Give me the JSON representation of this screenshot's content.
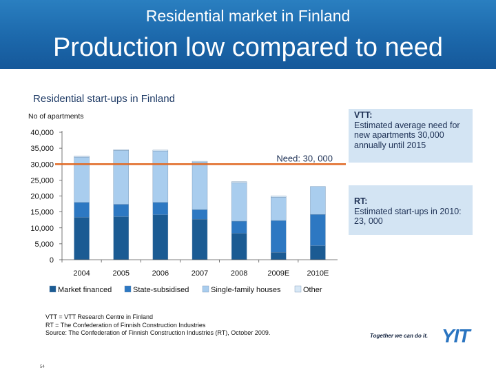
{
  "header": {
    "supertitle": "Residential market in Finland",
    "title": "Production low compared to need"
  },
  "subtitle": "Residential start-ups in Finland",
  "colors": {
    "header_bg": "#1c68ab",
    "market_financed": "#1b5b93",
    "state_subsidised": "#2d78c2",
    "single_family": "#a9cdee",
    "other": "#d8e8f6",
    "need_line": "#e06a25",
    "box_bg": "#d3e4f3"
  },
  "chart_data": {
    "type": "bar",
    "stacked": true,
    "ylabel": "No of apartments",
    "ylim": [
      0,
      40000
    ],
    "y_ticks": [
      "0",
      "5,000",
      "10,000",
      "15,000",
      "20,000",
      "25,000",
      "30,000",
      "35,000",
      "40,000"
    ],
    "categories": [
      "2004",
      "2005",
      "2006",
      "2007",
      "2008",
      "2009E",
      "2010E"
    ],
    "series": [
      {
        "name": "Market financed",
        "values": [
          13300,
          13500,
          14100,
          12700,
          8300,
          2300,
          4400
        ]
      },
      {
        "name": "State-subsidised",
        "values": [
          4700,
          3900,
          3900,
          3000,
          3800,
          10000,
          9800
        ]
      },
      {
        "name": "Single-family houses",
        "values": [
          14200,
          16900,
          16100,
          14900,
          12000,
          7300,
          8800
        ]
      },
      {
        "name": "Other",
        "values": [
          300,
          200,
          300,
          300,
          400,
          400,
          0
        ]
      }
    ],
    "reference_line": {
      "label": "Need: 30, 000",
      "value": 30000
    },
    "legend_position": "bottom"
  },
  "callouts": [
    {
      "head": "VTT:",
      "body": "Estimated average need for new apartments 30,000 annually until 2015"
    },
    {
      "head": "RT:",
      "body": "Estimated start-ups in 2010: 23, 000"
    }
  ],
  "notes": [
    "VTT = VTT Research Centre in Finland",
    "RT = The Confederation of Finnish Construction Industries",
    "Source: The Confederation of Finnish Construction Industries (RT), October 2009."
  ],
  "footer": {
    "page_number": "54",
    "slogan": "Together we can do it.",
    "logo": "YIT"
  }
}
